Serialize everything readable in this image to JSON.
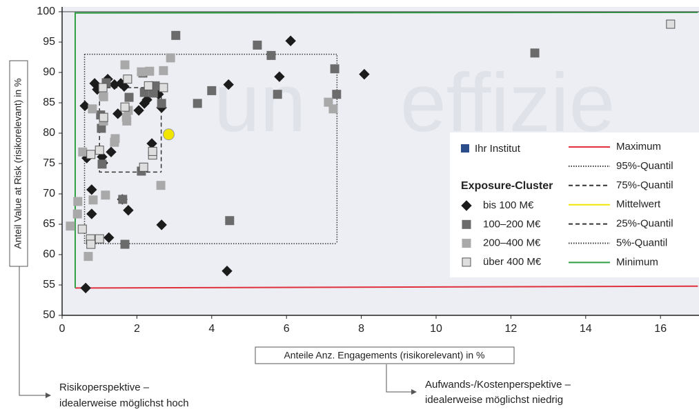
{
  "chart_data": {
    "type": "scatter",
    "x_label": "Anteile Anz. Engagements (risikorelevant) in %",
    "y_label": "Anteil Value at Risk (risikorelevant) in %",
    "xlim": [
      0,
      17
    ],
    "ylim": [
      50,
      100
    ],
    "xticks": [
      0,
      2,
      4,
      6,
      8,
      10,
      12,
      14,
      16
    ],
    "yticks": [
      50,
      55,
      60,
      65,
      70,
      75,
      80,
      85,
      90,
      95,
      100
    ],
    "watermark": [
      "un",
      "effizie"
    ],
    "highlight": {
      "name": "Ihr Institut",
      "color": "#2b4d8c"
    },
    "legend_title": "Exposure-Cluster",
    "series": [
      {
        "name": "bis 100 M€",
        "color": "#1c1c1c",
        "marker": "diamond",
        "x": [
          0.63,
          0.61,
          0.66,
          0.79,
          0.79,
          0.87,
          0.94,
          1.07,
          1.09,
          1.22,
          1.25,
          1.31,
          1.4,
          1.49,
          1.57,
          1.66,
          1.61,
          1.77,
          2.05,
          2.2,
          2.27,
          2.4,
          2.58,
          2.66,
          2.66,
          4.41,
          4.45,
          5.81,
          6.11,
          8.08
        ],
        "y": [
          54.5,
          84.5,
          75.9,
          70.7,
          66.7,
          88.2,
          87.2,
          76.1,
          75.1,
          88.9,
          62.8,
          76.9,
          88.0,
          83.2,
          88.2,
          87.7,
          69.1,
          67.3,
          83.75,
          84.9,
          85.5,
          78.3,
          86.4,
          84.2,
          64.9,
          57.3,
          88.0,
          89.3,
          95.2,
          89.7
        ]
      },
      {
        "name": "100–200 M€",
        "color": "#6b6b6b",
        "marker": "square",
        "x": [
          1.03,
          1.05,
          1.18,
          1.07,
          1.62,
          1.68,
          1.79,
          2.16,
          2.2,
          2.12,
          2.44,
          2.49,
          2.66,
          3.04,
          3.62,
          4.0,
          4.48,
          5.22,
          5.59,
          5.76,
          7.29,
          7.34,
          12.64
        ],
        "y": [
          83.0,
          80.8,
          88.3,
          74.9,
          69.1,
          61.7,
          85.9,
          89.9,
          86.7,
          73.75,
          86.6,
          87.8,
          84.9,
          96.1,
          84.9,
          87.0,
          65.6,
          94.5,
          92.8,
          86.4,
          90.6,
          86.4,
          93.2
        ]
      },
      {
        "name": "200–400 M€",
        "color": "#a9a9a9",
        "marker": "square",
        "x": [
          0.22,
          0.42,
          0.41,
          0.55,
          0.7,
          0.81,
          0.83,
          1.11,
          1.16,
          1.4,
          1.42,
          1.68,
          1.73,
          1.72,
          1.77,
          2.12,
          2.34,
          2.71,
          2.9,
          2.64,
          7.12,
          7.25,
          1.11
        ],
        "y": [
          64.7,
          68.75,
          66.7,
          76.9,
          59.7,
          84.0,
          69.0,
          82.0,
          69.8,
          78.5,
          79.1,
          91.25,
          82.0,
          82.6,
          83.75,
          90.1,
          90.2,
          90.3,
          92.4,
          71.4,
          85.1,
          84.0,
          86.0
        ]
      },
      {
        "name": "über 400 M€",
        "color": "#dedede",
        "marker": "square",
        "x": [
          0.54,
          0.76,
          0.77,
          0.77,
          1.0,
          1.0,
          1.09,
          1.11,
          1.68,
          1.75,
          2.18,
          2.31,
          2.42,
          2.42,
          2.71,
          16.27
        ],
        "y": [
          64.2,
          62.6,
          76.5,
          61.7,
          62.6,
          77.2,
          87.5,
          82.6,
          84.3,
          88.9,
          74.4,
          87.8,
          76.4,
          77.0,
          87.5,
          97.95
        ]
      }
    ],
    "reference_lines": [
      {
        "name": "Maximum",
        "color": "#e0303c",
        "style": "solid",
        "x": [
          0.35,
          17
        ],
        "y": [
          54.5,
          54.8
        ]
      },
      {
        "name": "95%-Quantil",
        "color": "#333333",
        "style": "dotted",
        "x": [
          0.6,
          7.35,
          7.35
        ],
        "y": [
          93,
          93,
          61.8
        ]
      },
      {
        "name": "75%-Quantil",
        "color": "#333333",
        "style": "dashed",
        "x": [
          1.0,
          2.65,
          2.65
        ],
        "y": [
          87.5,
          87.5,
          73.6
        ]
      },
      {
        "name": "Mittelwert",
        "color": "#f2e600",
        "style": "point",
        "x": [
          2.85
        ],
        "y": [
          79.8
        ]
      },
      {
        "name": "25%-Quantil",
        "color": "#333333",
        "style": "dashed",
        "x": [
          1.0,
          1.0,
          2.65
        ],
        "y": [
          87.5,
          73.6,
          73.6
        ]
      },
      {
        "name": "5%-Quantil",
        "color": "#333333",
        "style": "dotted",
        "x": [
          0.6,
          0.6,
          7.35
        ],
        "y": [
          93,
          61.8,
          61.8
        ]
      },
      {
        "name": "Minimum",
        "color": "#2ea043",
        "style": "solid",
        "x": [
          0.35,
          0.35,
          17
        ],
        "y": [
          54.5,
          99.8,
          99.9
        ]
      }
    ],
    "annotations": [
      {
        "lines": [
          "Risikoperspektive –",
          "idealerweise möglichst hoch"
        ]
      },
      {
        "lines": [
          "Aufwands-/Kostenperspektive –",
          "idealerweise möglichst niedrig"
        ]
      }
    ]
  }
}
